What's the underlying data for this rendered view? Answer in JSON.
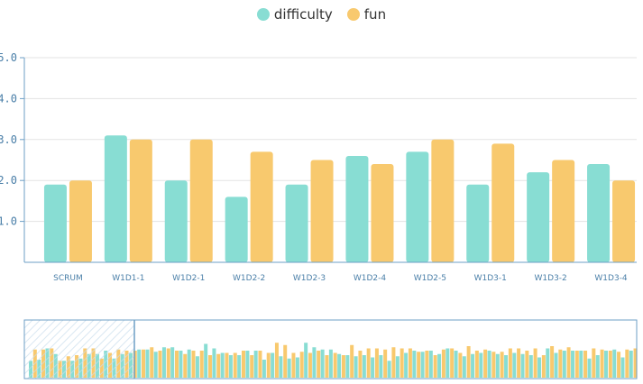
{
  "chart_data": {
    "type": "bar",
    "title": "",
    "xlabel": "",
    "ylabel": "",
    "categories": [
      "SCRUM",
      "W1D1-1",
      "W1D2-1",
      "W1D2-2",
      "W1D2-3",
      "W1D2-4",
      "W1D2-5",
      "W1D3-1",
      "W1D3-2",
      "W1D3-4"
    ],
    "series": [
      {
        "name": "difficulty",
        "color": "#88ddd3",
        "values": [
          1.9,
          3.1,
          2.0,
          1.6,
          1.9,
          2.6,
          2.7,
          1.9,
          2.2,
          2.4
        ]
      },
      {
        "name": "fun",
        "color": "#f8c96e",
        "values": [
          2.0,
          3.0,
          3.0,
          2.7,
          2.5,
          2.4,
          3.0,
          2.9,
          2.5,
          2.0
        ]
      }
    ],
    "ylim": [
      0,
      5
    ],
    "yticks": [
      "1.0",
      "2.0",
      "3.0",
      "4.0",
      "5.0"
    ],
    "grid": true,
    "legend_position": "top-center"
  },
  "overview": {
    "difficulty": [
      1.5,
      1.6,
      2.6,
      2.1,
      1.5,
      1.5,
      1.7,
      2.1,
      2.1,
      2.4,
      1.7,
      2.1,
      2.2,
      2.5,
      2.5,
      2.3,
      2.7,
      2.7,
      2.4,
      2.5,
      1.9,
      3.0,
      2.6,
      2.2,
      2.0,
      2.0,
      2.4,
      2.4,
      1.6,
      2.2,
      1.9,
      1.7,
      1.8,
      3.1,
      2.7,
      2.5,
      2.5,
      2.1,
      2.0,
      1.9,
      2.0,
      1.8,
      2.0,
      1.5,
      1.9,
      2.2,
      2.4,
      2.3,
      2.4,
      2.1,
      2.6,
      2.4,
      1.9,
      2.1,
      2.2,
      2.4,
      2.1,
      2.0,
      2.2,
      2.1,
      2.0,
      1.8,
      2.6,
      2.2,
      2.4,
      2.4,
      2.4,
      1.7,
      2.0,
      2.4,
      2.5,
      1.8,
      2.4
    ],
    "fun": [
      2.5,
      2.5,
      2.6,
      1.5,
      1.9,
      2.0,
      2.6,
      2.6,
      1.7,
      2.2,
      2.5,
      2.4,
      2.4,
      2.5,
      2.7,
      2.4,
      2.6,
      2.4,
      2.1,
      2.4,
      2.4,
      2.0,
      2.1,
      2.2,
      2.2,
      2.4,
      2.0,
      2.4,
      2.2,
      3.1,
      2.9,
      2.2,
      2.3,
      2.2,
      2.4,
      2.0,
      2.2,
      2.0,
      2.9,
      2.4,
      2.6,
      2.6,
      2.5,
      2.7,
      2.6,
      2.6,
      2.3,
      2.4,
      2.0,
      2.5,
      2.6,
      2.2,
      2.8,
      2.4,
      2.5,
      2.3,
      2.3,
      2.6,
      2.6,
      2.4,
      2.6,
      2.0,
      2.8,
      2.5,
      2.7,
      2.4,
      2.4,
      2.6,
      2.5,
      2.4,
      2.3,
      2.5,
      2.6
    ]
  }
}
